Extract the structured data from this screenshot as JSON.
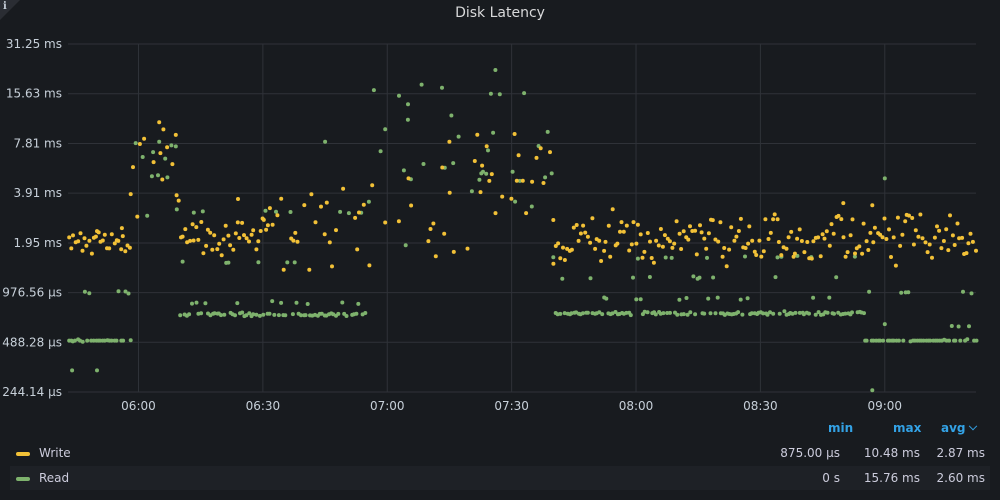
{
  "panel": {
    "title": "Disk Latency",
    "info_icon": "info-icon"
  },
  "colors": {
    "write": "#f2c137",
    "read": "#7eb26d",
    "grid": "#2f3238",
    "axis_text": "#c7d0d9",
    "accent": "#33a2e5",
    "background": "#181b1f"
  },
  "legend": {
    "headers": {
      "min": "min",
      "max": "max",
      "avg": "avg"
    },
    "rows": [
      {
        "name": "Write",
        "min": "875.00 µs",
        "max": "10.48 ms",
        "avg": "2.87 ms"
      },
      {
        "name": "Read",
        "min": "0 s",
        "max": "15.76 ms",
        "avg": "2.60 ms"
      }
    ]
  },
  "chart_data": {
    "type": "scatter",
    "title": "Disk Latency",
    "y_scale": "log2",
    "y_ticks_ms": [
      0.24414,
      0.48828,
      0.97656,
      1.95,
      3.91,
      7.81,
      15.63,
      31.25
    ],
    "y_tick_labels": [
      "244.14 µs",
      "488.28 µs",
      "976.56 µs",
      "1.95 ms",
      "3.91 ms",
      "7.81 ms",
      "15.63 ms",
      "31.25 ms"
    ],
    "x_range": [
      "05:43",
      "09:22"
    ],
    "x_ticks": [
      "06:00",
      "06:30",
      "07:00",
      "07:30",
      "08:00",
      "08:30",
      "09:00"
    ],
    "grid": true,
    "legend_position": "bottom",
    "series": [
      {
        "name": "Write",
        "segments": [
          {
            "from": "05:43",
            "to": "05:58",
            "center_ms": 2.0,
            "spread": 0.12,
            "outliers": [
              [
                "05:56",
                2.4
              ],
              [
                "05:50",
                2.3
              ]
            ]
          },
          {
            "from": "05:58",
            "to": "06:10",
            "center_ms": 5.5,
            "spread": 0.6,
            "outliers": [
              [
                "06:05",
                10.5
              ],
              [
                "06:06",
                9.5
              ],
              [
                "06:09",
                8.8
              ]
            ]
          },
          {
            "from": "06:10",
            "to": "06:30",
            "center_ms": 2.1,
            "spread": 0.2,
            "outliers": [
              [
                "06:24",
                3.6
              ]
            ]
          },
          {
            "from": "06:30",
            "to": "06:55",
            "center_ms": 2.3,
            "spread": 0.45,
            "outliers": []
          },
          {
            "from": "06:55",
            "to": "07:20",
            "center_ms": 3.2,
            "spread": 0.7,
            "outliers": [
              [
                "07:15",
                8.0
              ]
            ]
          },
          {
            "from": "07:20",
            "to": "07:40",
            "center_ms": 4.0,
            "spread": 0.8,
            "outliers": [
              [
                "07:37",
                7.3
              ]
            ]
          },
          {
            "from": "07:40",
            "to": "09:22",
            "center_ms": 2.05,
            "spread": 0.28,
            "outliers": [
              [
                "08:50",
                3.4
              ],
              [
                "08:57",
                3.3
              ]
            ]
          }
        ]
      },
      {
        "name": "Read",
        "segments": [
          {
            "from": "05:43",
            "to": "05:58",
            "center_ms": 0.5,
            "spread": 0.0,
            "alt_levels_ms": [
              0.98,
              0.5
            ],
            "outliers": [
              [
                "05:44",
                0.33
              ],
              [
                "05:50",
                0.33
              ]
            ]
          },
          {
            "from": "05:58",
            "to": "06:10",
            "center_ms": 6.0,
            "spread": 0.6,
            "outliers": [
              [
                "06:05",
                8.0
              ],
              [
                "06:09",
                7.5
              ]
            ]
          },
          {
            "from": "06:10",
            "to": "06:55",
            "center_ms": 0.72,
            "spread": 0.02,
            "alt_levels_ms": [
              0.85,
              1.5,
              3.0
            ],
            "outliers": [
              [
                "06:45",
                8.0
              ]
            ]
          },
          {
            "from": "06:55",
            "to": "07:40",
            "center_ms": 6.0,
            "spread": 1.0,
            "outliers": [
              [
                "07:05",
                13.5
              ],
              [
                "07:25",
                15.6
              ],
              [
                "07:33",
                15.76
              ]
            ]
          },
          {
            "from": "07:40",
            "to": "08:55",
            "center_ms": 0.73,
            "spread": 0.02,
            "alt_levels_ms": [
              0.9,
              1.2,
              1.6
            ],
            "outliers": []
          },
          {
            "from": "08:55",
            "to": "09:22",
            "center_ms": 0.5,
            "spread": 0.0,
            "alt_levels_ms": [
              0.98,
              0.62,
              0.5
            ],
            "outliers": [
              [
                "09:00",
                4.8
              ],
              [
                "08:57",
                0.25
              ]
            ]
          }
        ]
      }
    ]
  }
}
